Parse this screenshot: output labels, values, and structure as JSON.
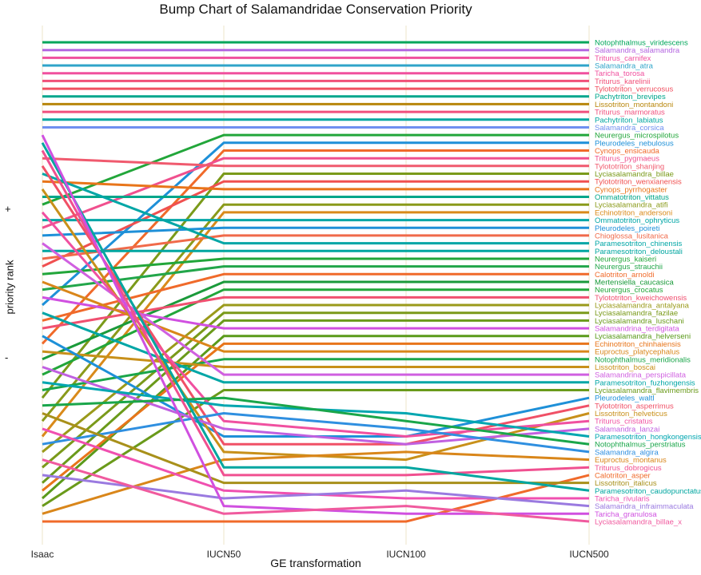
{
  "chart_data": {
    "type": "bump",
    "title": "Bump Chart of Salamandridae Conservation Priority",
    "xlabel": "GE transformation",
    "ylabel": "priority rank",
    "y_markers": [
      "+",
      "-"
    ],
    "categories": [
      "Isaac",
      "IUCN50",
      "IUCN100",
      "IUCN500"
    ],
    "n_ranks": 63,
    "series": [
      {
        "name": "Notophthalmus_viridescens",
        "color": "#00a65a",
        "ranks": [
          1,
          1,
          1,
          1
        ]
      },
      {
        "name": "Salamandra_salamandra",
        "color": "#b466e0",
        "ranks": [
          2,
          2,
          2,
          2
        ]
      },
      {
        "name": "Triturus_carnifex",
        "color": "#f0509e",
        "ranks": [
          3,
          3,
          3,
          3
        ]
      },
      {
        "name": "Salamandra_atra",
        "color": "#2fa4c9",
        "ranks": [
          4,
          4,
          4,
          4
        ]
      },
      {
        "name": "Taricha_torosa",
        "color": "#f0509e",
        "ranks": [
          5,
          5,
          5,
          5
        ]
      },
      {
        "name": "Triturus_karelinii",
        "color": "#f05078",
        "ranks": [
          6,
          6,
          6,
          6
        ]
      },
      {
        "name": "Tylototriton_verrucosus",
        "color": "#f05060",
        "ranks": [
          7,
          7,
          7,
          7
        ]
      },
      {
        "name": "Pachytriton_brevipes",
        "color": "#00a68c",
        "ranks": [
          8,
          8,
          8,
          8
        ]
      },
      {
        "name": "Lissotriton_montandoni",
        "color": "#b8860b",
        "ranks": [
          9,
          9,
          9,
          9
        ]
      },
      {
        "name": "Triturus_marmoratus",
        "color": "#f0507e",
        "ranks": [
          10,
          10,
          10,
          10
        ]
      },
      {
        "name": "Pachytriton_labiatus",
        "color": "#00a6a0",
        "ranks": [
          11,
          11,
          11,
          11
        ]
      },
      {
        "name": "Salamandra_corsica",
        "color": "#6f8ff0",
        "ranks": [
          12,
          12,
          12,
          12
        ]
      },
      {
        "name": "Neurergus_microspilotus",
        "color": "#22a63a",
        "ranks": [
          22,
          13,
          13,
          13
        ]
      },
      {
        "name": "Pleurodeles_nebulosus",
        "color": "#1e90d8",
        "ranks": [
          35,
          14,
          14,
          14
        ]
      },
      {
        "name": "Cynops_ensicauda",
        "color": "#f06a2a",
        "ranks": [
          40,
          15,
          15,
          15
        ]
      },
      {
        "name": "Triturus_pygmaeus",
        "color": "#f0508e",
        "ranks": [
          25,
          16,
          16,
          16
        ]
      },
      {
        "name": "Tylototriton_shanjing",
        "color": "#f05a6e",
        "ranks": [
          16,
          17,
          17,
          17
        ]
      },
      {
        "name": "Lyciasalamandra_billae",
        "color": "#7a9a1a",
        "ranks": [
          47,
          18,
          18,
          18
        ]
      },
      {
        "name": "Tylototriton_wenxianensis",
        "color": "#f05050",
        "ranks": [
          30,
          19,
          19,
          19
        ]
      },
      {
        "name": "Cynops_pyrrhogaster",
        "color": "#e8751a",
        "ranks": [
          19,
          20,
          20,
          20
        ]
      },
      {
        "name": "Ommatotriton_vittatus",
        "color": "#00a68a",
        "ranks": [
          21,
          21,
          21,
          21
        ]
      },
      {
        "name": "Lyciasalamandra_atifi",
        "color": "#8a9a1a",
        "ranks": [
          50,
          22,
          22,
          22
        ]
      },
      {
        "name": "Echinotriton_andersoni",
        "color": "#d98a1a",
        "ranks": [
          52,
          23,
          23,
          23
        ]
      },
      {
        "name": "Ommatotriton_ophryticus",
        "color": "#00a6a6",
        "ranks": [
          24,
          24,
          24,
          24
        ]
      },
      {
        "name": "Pleurodeles_poireti",
        "color": "#1e90d8",
        "ranks": [
          26,
          25,
          25,
          25
        ]
      },
      {
        "name": "Chioglossa_lusitanica",
        "color": "#f06a4a",
        "ranks": [
          29,
          26,
          26,
          26
        ]
      },
      {
        "name": "Paramesotriton_chinensis",
        "color": "#00a6a6",
        "ranks": [
          18,
          27,
          27,
          27
        ]
      },
      {
        "name": "Paramesotriton_deloustali",
        "color": "#00a6a0",
        "ranks": [
          28,
          28,
          28,
          28
        ]
      },
      {
        "name": "Neurergus_kaiseri",
        "color": "#22a63a",
        "ranks": [
          31,
          29,
          29,
          29
        ]
      },
      {
        "name": "Neurergus_strauchii",
        "color": "#22a64a",
        "ranks": [
          33,
          30,
          30,
          30
        ]
      },
      {
        "name": "Calotriton_arnoldi",
        "color": "#f06a2a",
        "ranks": [
          37,
          31,
          31,
          31
        ]
      },
      {
        "name": "Mertensiella_caucasica",
        "color": "#1a9a3a",
        "ranks": [
          42,
          32,
          32,
          32
        ]
      },
      {
        "name": "Neurergus_crocatus",
        "color": "#22a63a",
        "ranks": [
          44,
          33,
          33,
          33
        ]
      },
      {
        "name": "Tylototriton_kweichowensis",
        "color": "#f05070",
        "ranks": [
          38,
          34,
          34,
          34
        ]
      },
      {
        "name": "Lyciasalamandra_antalyana",
        "color": "#9a9a1a",
        "ranks": [
          54,
          35,
          35,
          35
        ]
      },
      {
        "name": "Lyciasalamandra_fazilae",
        "color": "#7a9a1a",
        "ranks": [
          56,
          36,
          36,
          36
        ]
      },
      {
        "name": "Lyciasalamandra_luschani",
        "color": "#6a9a1a",
        "ranks": [
          58,
          37,
          37,
          37
        ]
      },
      {
        "name": "Salamandrina_terdigitata",
        "color": "#d050e0",
        "ranks": [
          34,
          38,
          38,
          38
        ]
      },
      {
        "name": "Lyciasalamandra_helverseni",
        "color": "#5a9a1a",
        "ranks": [
          60,
          39,
          39,
          39
        ]
      },
      {
        "name": "Echinotriton_chinhaiensis",
        "color": "#e8751a",
        "ranks": [
          59,
          40,
          40,
          40
        ]
      },
      {
        "name": "Euproctus_platycephalus",
        "color": "#d9861a",
        "ranks": [
          32,
          41,
          41,
          41
        ]
      },
      {
        "name": "Notophthalmus_meridionalis",
        "color": "#1aa64a",
        "ranks": [
          46,
          42,
          42,
          42
        ]
      },
      {
        "name": "Lissotriton_boscai",
        "color": "#c8901a",
        "ranks": [
          41,
          43,
          43,
          43
        ]
      },
      {
        "name": "Salamandrina_perspicillata",
        "color": "#d060e0",
        "ranks": [
          27,
          44,
          44,
          44
        ]
      },
      {
        "name": "Paramesotriton_fuzhongensis",
        "color": "#00a6a6",
        "ranks": [
          36,
          45,
          45,
          45
        ]
      },
      {
        "name": "Lyciasalamandra_flavimembris",
        "color": "#6a9a1a",
        "ranks": [
          61,
          46,
          46,
          46
        ]
      },
      {
        "name": "Pleurodeles_waltl",
        "color": "#1e90d8",
        "ranks": [
          39,
          52,
          52,
          47
        ]
      },
      {
        "name": "Tylototriton_asperrimus",
        "color": "#f05066",
        "ranks": [
          17,
          53,
          53,
          48
        ]
      },
      {
        "name": "Lissotriton_helveticus",
        "color": "#c8901a",
        "ranks": [
          20,
          54,
          55,
          49
        ]
      },
      {
        "name": "Triturus_cristatus",
        "color": "#f050a0",
        "ranks": [
          23,
          50,
          52,
          50
        ]
      },
      {
        "name": "Salamandra_lanzai",
        "color": "#c060e0",
        "ranks": [
          43,
          51,
          53,
          51
        ]
      },
      {
        "name": "Paramesotriton_hongkongensis",
        "color": "#00a6b0",
        "ranks": [
          45,
          48,
          49,
          52
        ]
      },
      {
        "name": "Notophthalmus_perstriatus",
        "color": "#1aa64a",
        "ranks": [
          48,
          47,
          50,
          53
        ]
      },
      {
        "name": "Salamandra_algira",
        "color": "#2f8fe0",
        "ranks": [
          53,
          49,
          51,
          54
        ]
      },
      {
        "name": "Euproctus_montanus",
        "color": "#d9861a",
        "ranks": [
          62,
          55,
          54,
          55
        ]
      },
      {
        "name": "Triturus_dobrogicus",
        "color": "#f05090",
        "ranks": [
          15,
          57,
          57,
          56
        ]
      },
      {
        "name": "Calotriton_asper",
        "color": "#f06a2a",
        "ranks": [
          63,
          63,
          63,
          57
        ]
      },
      {
        "name": "Lissotriton_italicus",
        "color": "#a8901a",
        "ranks": [
          49,
          58,
          58,
          58
        ]
      },
      {
        "name": "Paramesotriton_caudopunctatus",
        "color": "#00a6a0",
        "ranks": [
          14,
          56,
          56,
          59
        ]
      },
      {
        "name": "Taricha_rivularis",
        "color": "#f050b0",
        "ranks": [
          51,
          59,
          60,
          60
        ]
      },
      {
        "name": "Salamandra_infraimmaculata",
        "color": "#9a7ae0",
        "ranks": [
          57,
          60,
          59,
          61
        ]
      },
      {
        "name": "Taricha_granulosa",
        "color": "#d050e0",
        "ranks": [
          13,
          61,
          62,
          62
        ]
      },
      {
        "name": "Lyciasalamandra_billae_x",
        "color": "#f05a9e",
        "ranks": [
          55,
          62,
          61,
          63
        ]
      }
    ]
  }
}
